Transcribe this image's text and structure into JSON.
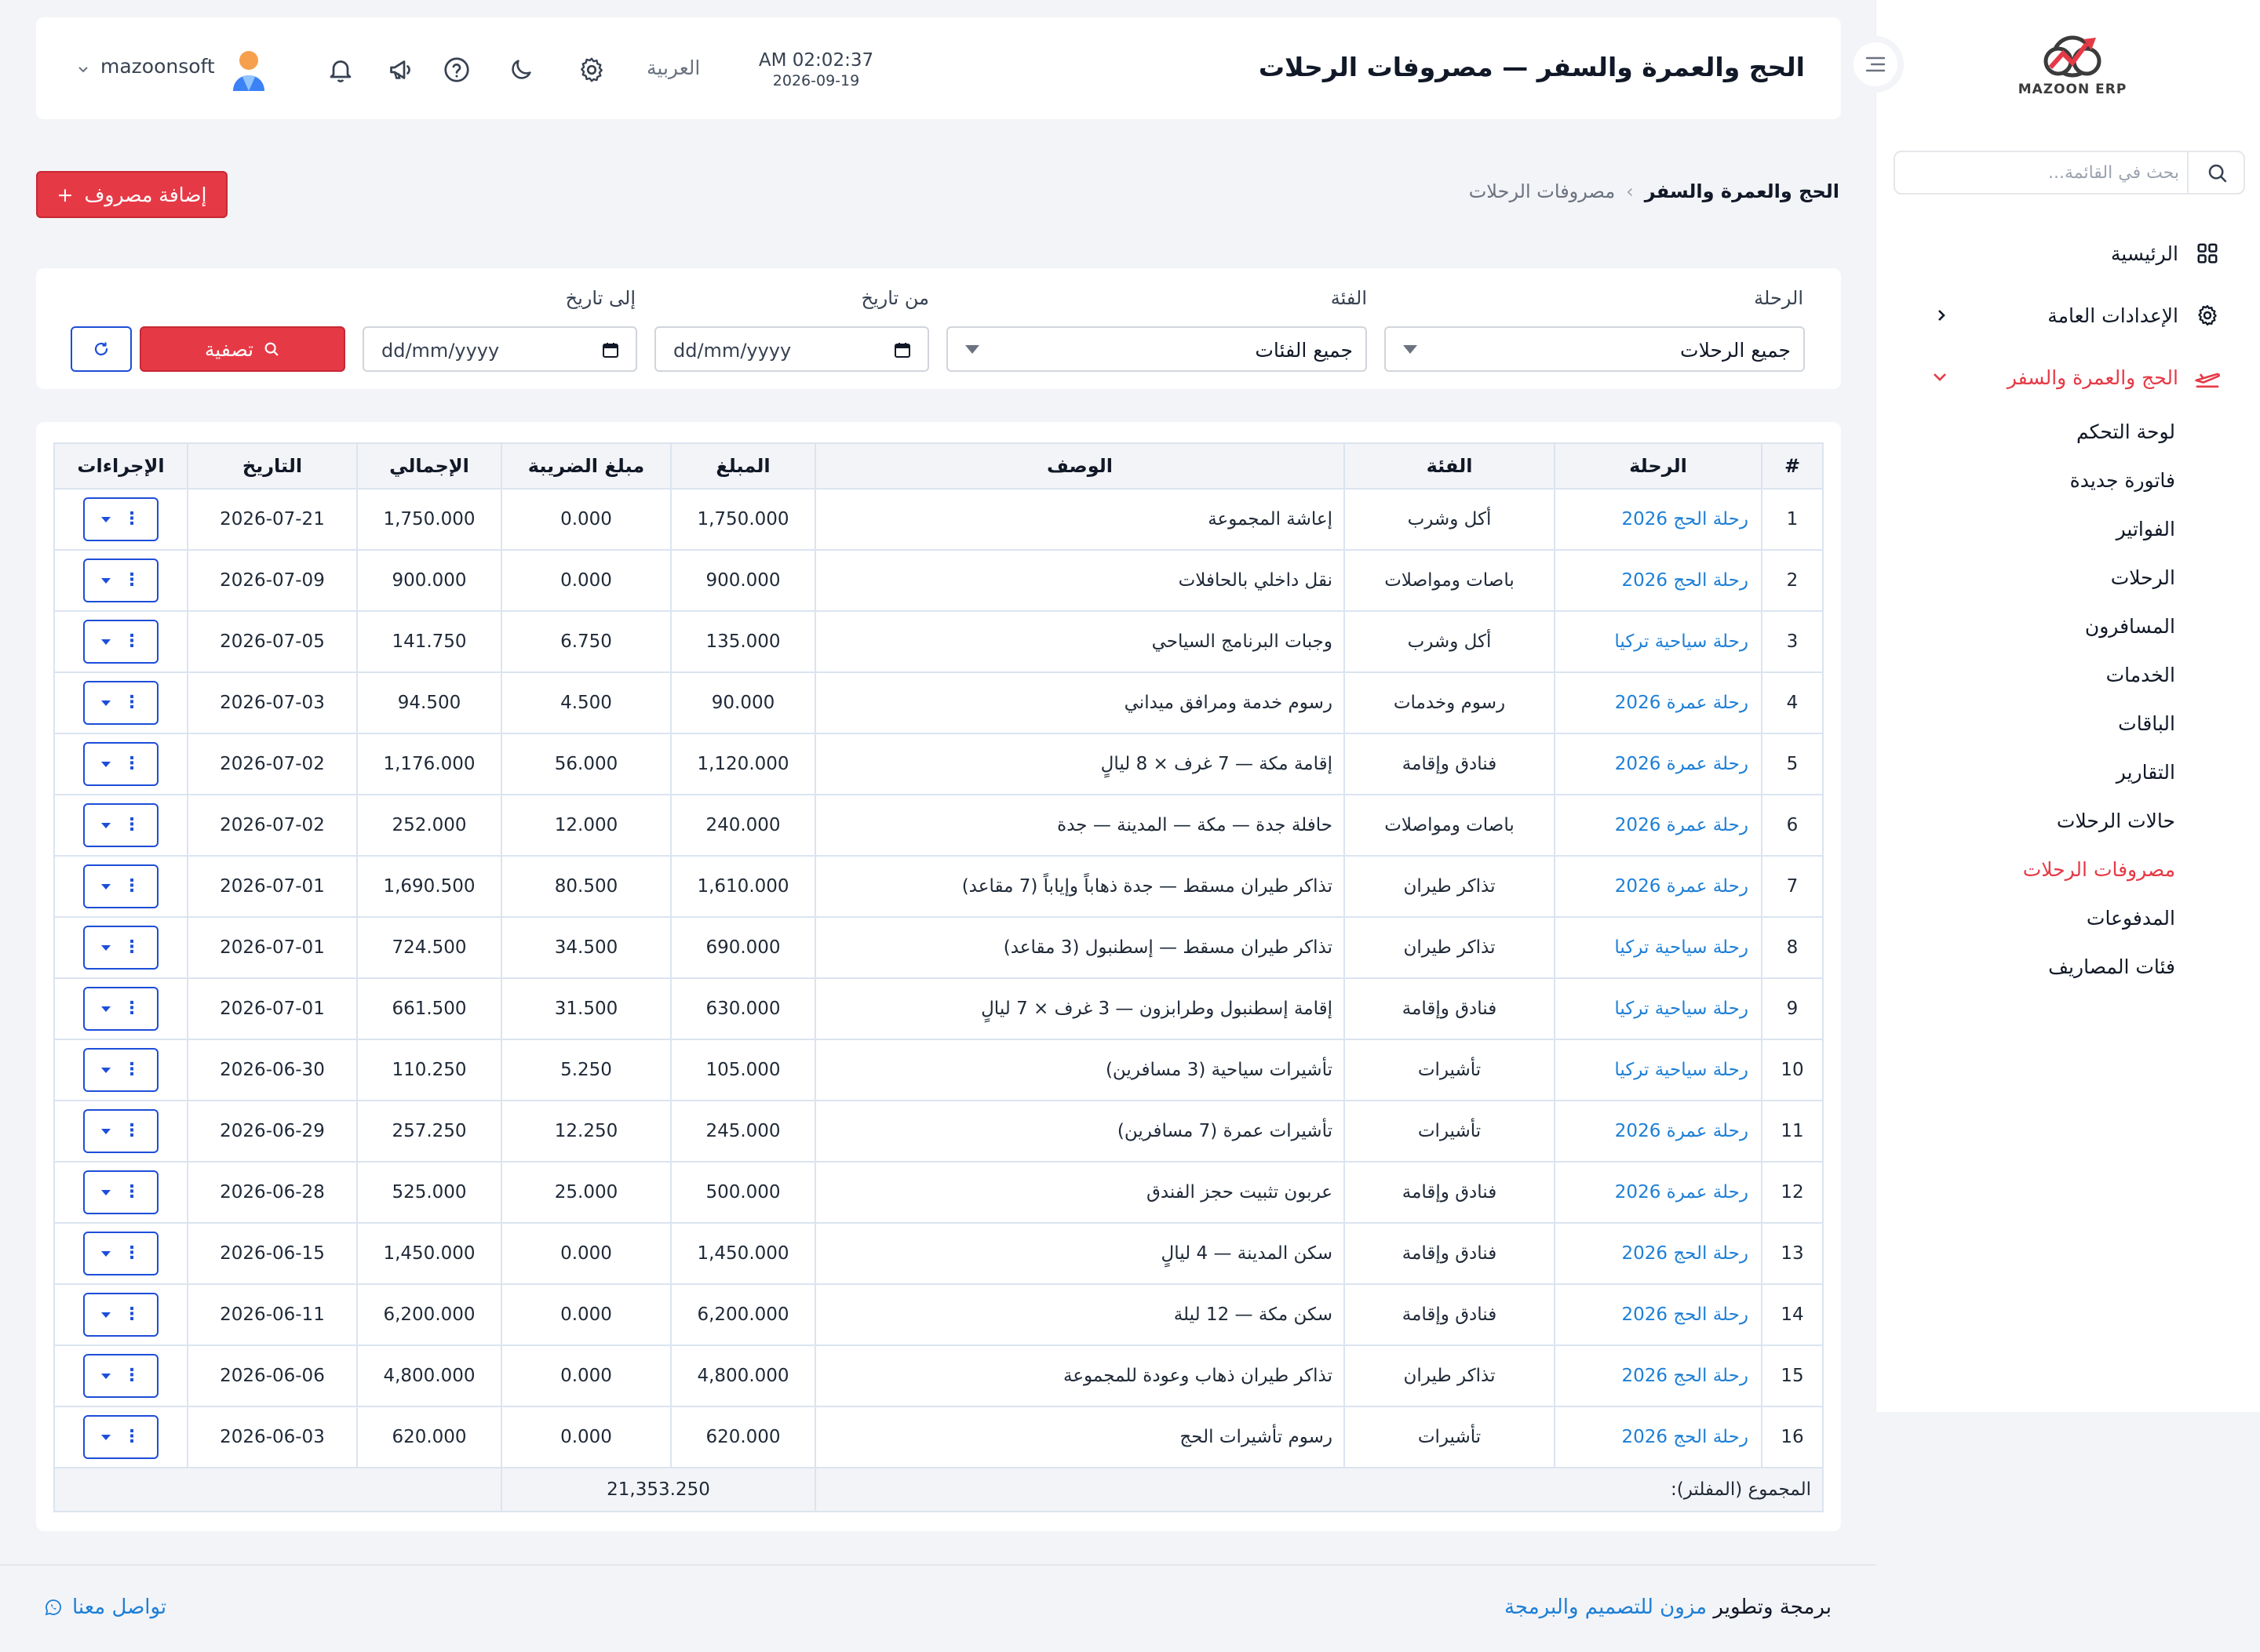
{
  "brand": {
    "logo_text": "MAZOON ERP",
    "accent": "#e63946",
    "link": "#1d7fd6"
  },
  "sidebar": {
    "search_placeholder": "بحث في القائمة...",
    "items": [
      {
        "label": "الرئيسية",
        "icon": "grid-icon"
      },
      {
        "label": "الإعدادات العامة",
        "icon": "gear-icon"
      },
      {
        "label": "الحج والعمرة والسفر",
        "icon": "airplane-icon"
      }
    ],
    "sub_items": [
      "لوحة التحكم",
      "فاتورة جديدة",
      "الفواتير",
      "الرحلات",
      "المسافرون",
      "الخدمات",
      "الباقات",
      "التقارير",
      "حالات الرحلات",
      "مصروفات الرحلات",
      "المدفوعات",
      "فئات المصاريف"
    ]
  },
  "header": {
    "title": "الحج والعمرة والسفر — مصروفات الرحلات",
    "time": "AM 02:02:37",
    "date": "2026-09-19",
    "language": "العربية",
    "user": "mazoonsoft"
  },
  "breadcrumb": {
    "parent": "الحج والعمرة والسفر",
    "separator": "›",
    "current": "مصروفات الرحلات"
  },
  "add_button": {
    "label": "إضافة مصروف",
    "plus": "+"
  },
  "filters": {
    "trip_label": "الرحلة",
    "trip_value": "جميع الرحلات",
    "category_label": "الفئة",
    "category_value": "جميع الفئات",
    "from_label": "من تاريخ",
    "from_placeholder": "dd/mm/yyyy",
    "to_label": "إلى تاريخ",
    "to_placeholder": "dd/mm/yyyy",
    "filter_button": "تصفية"
  },
  "table": {
    "columns": [
      "#",
      "الرحلة",
      "الفئة",
      "الوصف",
      "المبلغ",
      "مبلغ الضريبة",
      "الإجمالي",
      "التاريخ",
      "الإجراءات"
    ],
    "rows": [
      {
        "n": "1",
        "trip": "رحلة الحج 2026",
        "category": "أكل وشرب",
        "desc": "إعاشة المجموعة",
        "amount": "1,750.000",
        "tax": "0.000",
        "total": "1,750.000",
        "date": "2026-07-21"
      },
      {
        "n": "2",
        "trip": "رحلة الحج 2026",
        "category": "باصات ومواصلات",
        "desc": "نقل داخلي بالحافلات",
        "amount": "900.000",
        "tax": "0.000",
        "total": "900.000",
        "date": "2026-07-09"
      },
      {
        "n": "3",
        "trip": "رحلة سياحية تركيا",
        "category": "أكل وشرب",
        "desc": "وجبات البرنامج السياحي",
        "amount": "135.000",
        "tax": "6.750",
        "total": "141.750",
        "date": "2026-07-05"
      },
      {
        "n": "4",
        "trip": "رحلة عمرة 2026",
        "category": "رسوم وخدمات",
        "desc": "رسوم خدمة ومرافق ميداني",
        "amount": "90.000",
        "tax": "4.500",
        "total": "94.500",
        "date": "2026-07-03"
      },
      {
        "n": "5",
        "trip": "رحلة عمرة 2026",
        "category": "فنادق وإقامة",
        "desc": "إقامة مكة — 7 غرف × 8 ليالٍ",
        "amount": "1,120.000",
        "tax": "56.000",
        "total": "1,176.000",
        "date": "2026-07-02"
      },
      {
        "n": "6",
        "trip": "رحلة عمرة 2026",
        "category": "باصات ومواصلات",
        "desc": "حافلة جدة — مكة — المدينة — جدة",
        "amount": "240.000",
        "tax": "12.000",
        "total": "252.000",
        "date": "2026-07-02"
      },
      {
        "n": "7",
        "trip": "رحلة عمرة 2026",
        "category": "تذاكر طيران",
        "desc": "تذاكر طيران مسقط — جدة ذهاباً وإياباً (7 مقاعد)",
        "amount": "1,610.000",
        "tax": "80.500",
        "total": "1,690.500",
        "date": "2026-07-01"
      },
      {
        "n": "8",
        "trip": "رحلة سياحية تركيا",
        "category": "تذاكر طيران",
        "desc": "تذاكر طيران مسقط — إسطنبول (3 مقاعد)",
        "amount": "690.000",
        "tax": "34.500",
        "total": "724.500",
        "date": "2026-07-01"
      },
      {
        "n": "9",
        "trip": "رحلة سياحية تركيا",
        "category": "فنادق وإقامة",
        "desc": "إقامة إسطنبول وطرابزون — 3 غرف × 7 ليالٍ",
        "amount": "630.000",
        "tax": "31.500",
        "total": "661.500",
        "date": "2026-07-01"
      },
      {
        "n": "10",
        "trip": "رحلة سياحية تركيا",
        "category": "تأشيرات",
        "desc": "تأشيرات سياحية (3 مسافرين)",
        "amount": "105.000",
        "tax": "5.250",
        "total": "110.250",
        "date": "2026-06-30"
      },
      {
        "n": "11",
        "trip": "رحلة عمرة 2026",
        "category": "تأشيرات",
        "desc": "تأشيرات عمرة (7 مسافرين)",
        "amount": "245.000",
        "tax": "12.250",
        "total": "257.250",
        "date": "2026-06-29"
      },
      {
        "n": "12",
        "trip": "رحلة عمرة 2026",
        "category": "فنادق وإقامة",
        "desc": "عربون تثبيت حجز الفندق",
        "amount": "500.000",
        "tax": "25.000",
        "total": "525.000",
        "date": "2026-06-28"
      },
      {
        "n": "13",
        "trip": "رحلة الحج 2026",
        "category": "فنادق وإقامة",
        "desc": "سكن المدينة — 4 ليالٍ",
        "amount": "1,450.000",
        "tax": "0.000",
        "total": "1,450.000",
        "date": "2026-06-15"
      },
      {
        "n": "14",
        "trip": "رحلة الحج 2026",
        "category": "فنادق وإقامة",
        "desc": "سكن مكة — 12 ليلة",
        "amount": "6,200.000",
        "tax": "0.000",
        "total": "6,200.000",
        "date": "2026-06-11"
      },
      {
        "n": "15",
        "trip": "رحلة الحج 2026",
        "category": "تذاكر طيران",
        "desc": "تذاكر طيران ذهاب وعودة للمجموعة",
        "amount": "4,800.000",
        "tax": "0.000",
        "total": "4,800.000",
        "date": "2026-06-06"
      },
      {
        "n": "16",
        "trip": "رحلة الحج 2026",
        "category": "تأشيرات",
        "desc": "رسوم تأشيرات الحج",
        "amount": "620.000",
        "tax": "0.000",
        "total": "620.000",
        "date": "2026-06-03"
      }
    ],
    "total_label": "المجموع (المفلتر):",
    "total_value": "21,353.250"
  },
  "footer": {
    "credit_prefix": "برمجة وتطوير",
    "credit_link": "مزون للتصميم والبرمجة",
    "contact": "تواصل معنا"
  }
}
